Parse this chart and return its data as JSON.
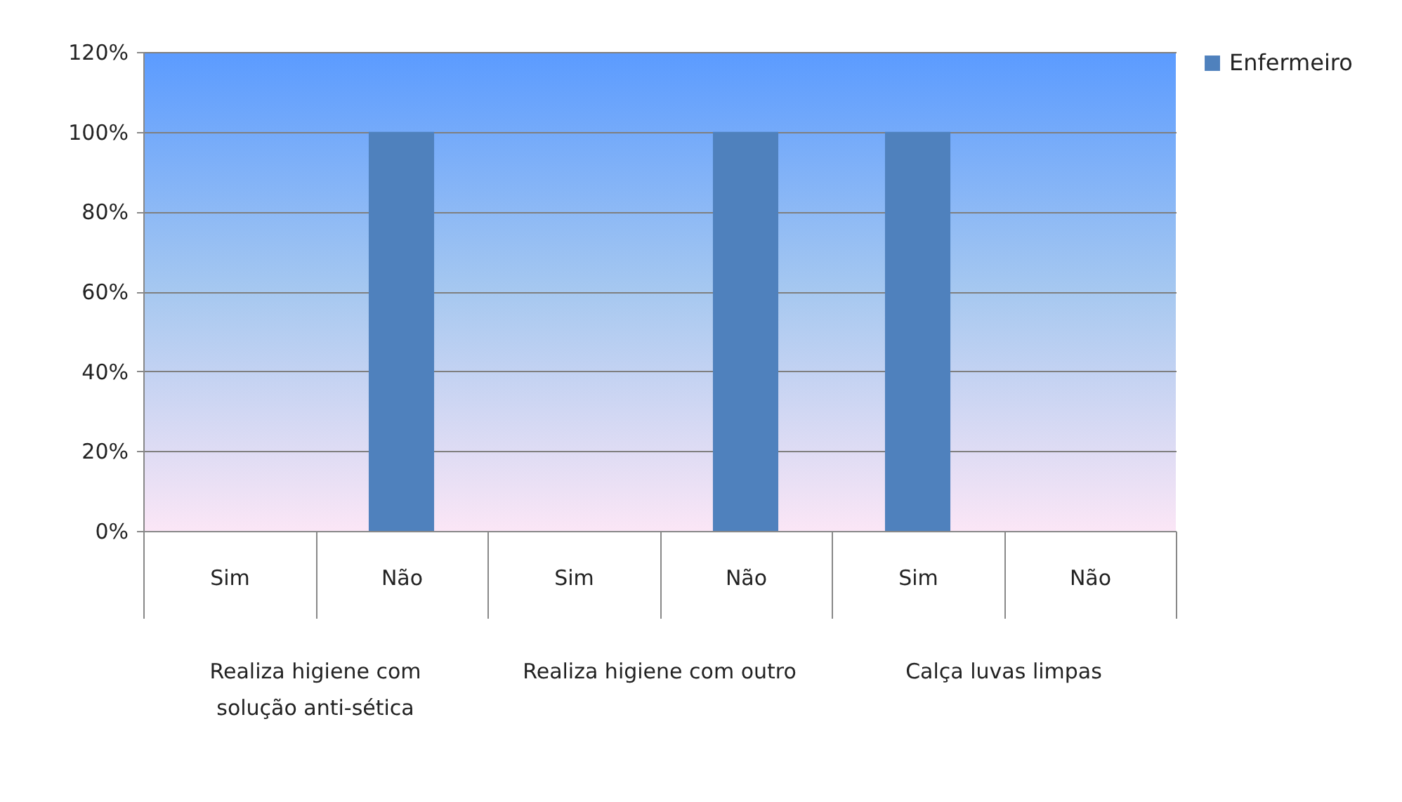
{
  "chart_data": {
    "type": "bar",
    "categories": [
      "Sim",
      "Não",
      "Sim",
      "Não",
      "Sim",
      "Não"
    ],
    "series": [
      {
        "name": "Enfermeiro",
        "color": "#4f81bd",
        "values": [
          0,
          100,
          0,
          100,
          100,
          0
        ]
      }
    ],
    "ylim": [
      0,
      120
    ],
    "yticks": [
      {
        "value": 0,
        "label": "0%"
      },
      {
        "value": 20,
        "label": "20%"
      },
      {
        "value": 40,
        "label": "40%"
      },
      {
        "value": 60,
        "label": "60%"
      },
      {
        "value": 80,
        "label": "80%"
      },
      {
        "value": 100,
        "label": "100%"
      },
      {
        "value": 120,
        "label": "120%"
      }
    ],
    "grid": "y",
    "legend": "right",
    "annotations": [
      "Realiza higiene com solução anti-sética",
      "Realiza higiene com outro",
      "Calça luvas limpas"
    ]
  }
}
